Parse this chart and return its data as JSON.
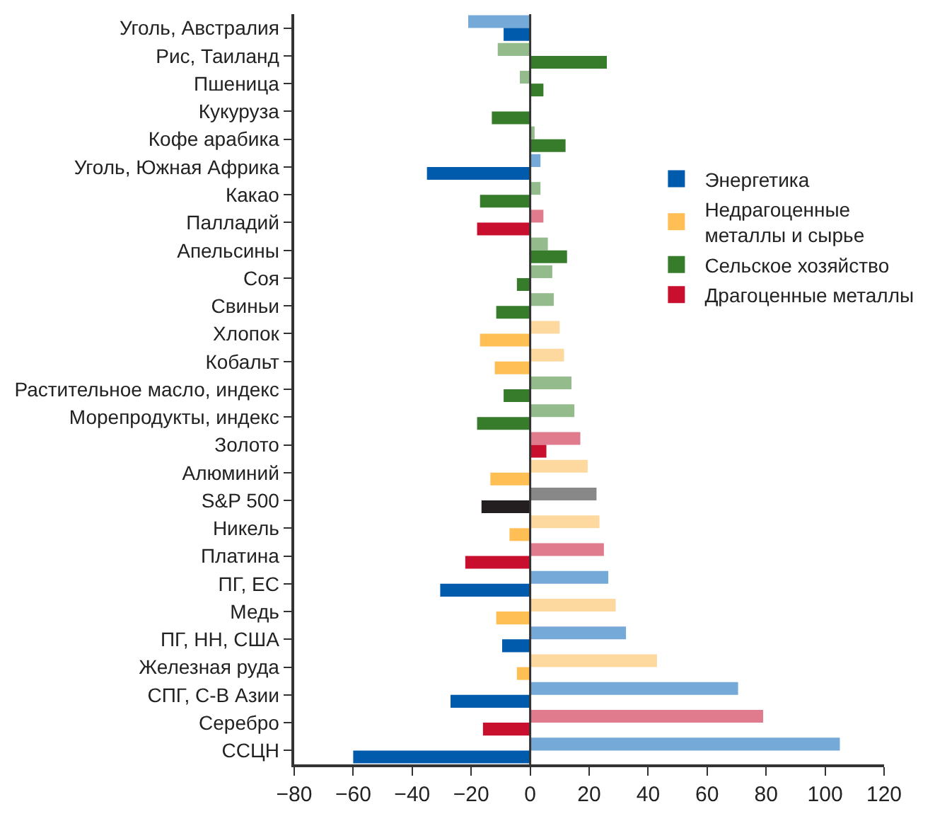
{
  "chart_data": {
    "type": "bar",
    "orientation": "horizontal",
    "categories": [
      "Уголь, Австралия",
      "Рис, Таиланд",
      "Пшеница",
      "Кукуруза",
      "Кофе арабика",
      "Уголь, Южная Африка",
      "Какао",
      "Палладий",
      "Апельсины",
      "Соя",
      "Свиньи",
      "Хлопок",
      "Кобальт",
      "Растительное масло, индекс",
      "Морепродукты, индекс",
      "Золото",
      "Алюминий",
      "S&P 500",
      "Никель",
      "Платина",
      "ПГ, ЕС",
      "Медь",
      "ПГ, НН, США",
      "Железная руда",
      "СПГ, С-В Азии",
      "Серебро",
      "ССЦН"
    ],
    "series": [
      {
        "color": "#74a9d8",
        "values": [
          -21,
          null,
          null,
          null,
          null,
          3.5,
          null,
          null,
          null,
          null,
          null,
          null,
          null,
          null,
          null,
          null,
          null,
          null,
          null,
          null,
          26.5,
          null,
          32.5,
          null,
          70.5,
          null,
          105
        ]
      },
      {
        "color": "#fdd9a0",
        "values": [
          null,
          null,
          null,
          null,
          null,
          null,
          null,
          null,
          null,
          null,
          null,
          10,
          11.5,
          null,
          null,
          null,
          19.5,
          null,
          23.5,
          null,
          null,
          29,
          null,
          43,
          null,
          null,
          null
        ]
      },
      {
        "color": "#93bb8b",
        "values": [
          null,
          -11,
          -3.5,
          null,
          1.5,
          null,
          3.5,
          null,
          6,
          7.5,
          8,
          null,
          null,
          14,
          15,
          null,
          null,
          null,
          null,
          null,
          null,
          null,
          null,
          null,
          null,
          null,
          null
        ]
      },
      {
        "color": "#e07a8d",
        "values": [
          null,
          null,
          null,
          null,
          null,
          null,
          null,
          4.5,
          null,
          null,
          null,
          null,
          null,
          null,
          null,
          17,
          null,
          null,
          null,
          25,
          null,
          null,
          null,
          null,
          null,
          79,
          null
        ]
      },
      {
        "color": "#888888",
        "values": [
          null,
          null,
          null,
          null,
          null,
          null,
          null,
          null,
          null,
          null,
          null,
          null,
          null,
          null,
          null,
          null,
          null,
          22.5,
          null,
          null,
          null,
          null,
          null,
          null,
          null,
          null,
          null
        ]
      },
      {
        "name": "Энергетика",
        "color": "#005bac",
        "values": [
          -9,
          null,
          null,
          null,
          null,
          -35,
          null,
          null,
          null,
          null,
          null,
          null,
          null,
          null,
          null,
          null,
          null,
          null,
          null,
          null,
          -30.5,
          null,
          -9.5,
          null,
          -27,
          null,
          -60
        ]
      },
      {
        "name": "Недрагоценные металлы и сырье",
        "color": "#ffbf55",
        "values": [
          null,
          null,
          null,
          null,
          null,
          null,
          null,
          null,
          null,
          null,
          null,
          -17,
          -12,
          null,
          null,
          null,
          -13.5,
          null,
          -7,
          null,
          null,
          -11.5,
          null,
          -4.5,
          null,
          null,
          null
        ]
      },
      {
        "name": "Сельское хозяйство",
        "color": "#367c2b",
        "values": [
          null,
          26,
          4.5,
          -13,
          12,
          null,
          -17,
          null,
          12.5,
          -4.5,
          -11.5,
          null,
          null,
          -9,
          -18,
          null,
          null,
          null,
          null,
          null,
          null,
          null,
          null,
          null,
          null,
          null,
          null
        ]
      },
      {
        "name": "Драгоценные металлы",
        "color": "#c8102e",
        "values": [
          null,
          null,
          null,
          null,
          null,
          null,
          null,
          -18,
          null,
          null,
          null,
          null,
          null,
          null,
          null,
          5.5,
          null,
          null,
          null,
          -22,
          null,
          null,
          null,
          null,
          null,
          -16,
          null
        ]
      },
      {
        "color": "#231f20",
        "values": [
          null,
          null,
          null,
          null,
          null,
          null,
          null,
          null,
          null,
          null,
          null,
          null,
          null,
          null,
          null,
          null,
          null,
          -16.5,
          null,
          null,
          null,
          null,
          null,
          null,
          null,
          null,
          null
        ]
      }
    ],
    "xlim": [
      -80,
      120
    ],
    "xticks": [
      {
        "value": -80,
        "label": "−80"
      },
      {
        "value": -60,
        "label": "−60"
      },
      {
        "value": -40,
        "label": "−40"
      },
      {
        "value": -20,
        "label": "−20"
      },
      0,
      20,
      40,
      60,
      80,
      100,
      120
    ],
    "grid": false,
    "ref_lines": [
      {
        "axis": "x",
        "value": 0,
        "color": "#333333"
      }
    ],
    "legend": "right"
  }
}
